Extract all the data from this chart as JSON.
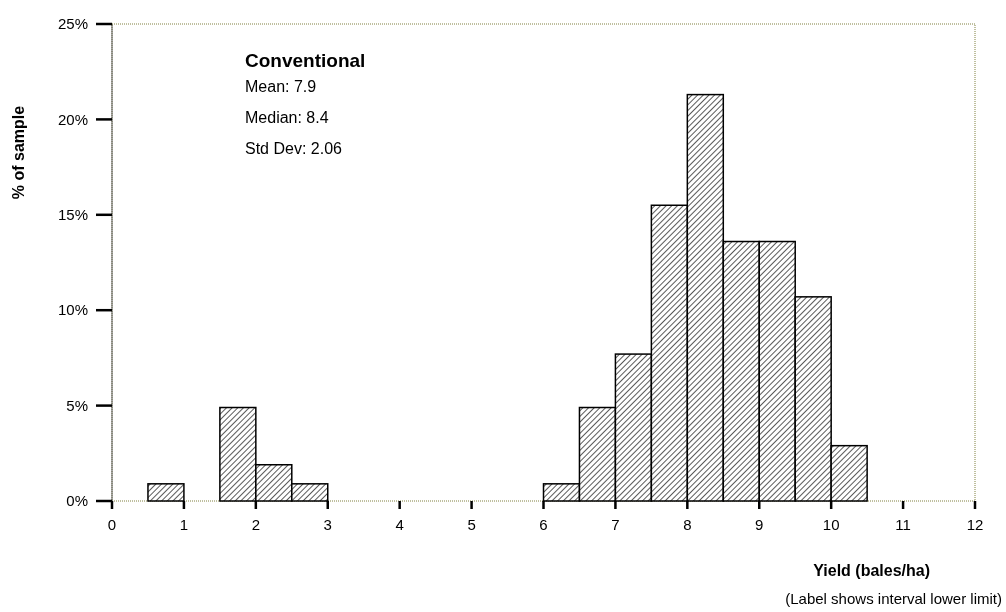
{
  "chart_data": {
    "type": "histogram",
    "xlabel": "Yield (bales/ha)",
    "ylabel": "% of sample",
    "bins": [
      0.5,
      1,
      1.5,
      2,
      2.5,
      3,
      3.5,
      4,
      4.5,
      5,
      5.5,
      6,
      6.5,
      7,
      7.5,
      8,
      8.5,
      9,
      9.5,
      10,
      10.5
    ],
    "values": [
      0.9,
      0,
      4.9,
      1.9,
      0.9,
      0,
      0,
      0,
      0,
      0,
      0,
      0.9,
      4.9,
      7.7,
      15.5,
      21.3,
      13.6,
      13.6,
      10.7,
      2.9
    ],
    "color": "#000000",
    "xlim": [
      0,
      12
    ],
    "xticks": [
      0,
      1,
      2,
      3,
      4,
      5,
      6,
      7,
      8,
      9,
      10,
      11,
      12
    ],
    "ylim": [
      0,
      25
    ],
    "yticks": [
      {
        "value": 0,
        "label": "0%"
      },
      {
        "value": 5,
        "label": "5%"
      },
      {
        "value": 10,
        "label": "10%"
      },
      {
        "value": 15,
        "label": "15%"
      },
      {
        "value": 20,
        "label": "20%"
      },
      {
        "value": 25,
        "label": "25%"
      }
    ],
    "grid": false,
    "annotations": [
      "Conventional",
      "Mean: 7.9",
      "Median: 8.4",
      "Std Dev: 2.06",
      "(Label shows interval lower limit)"
    ]
  }
}
